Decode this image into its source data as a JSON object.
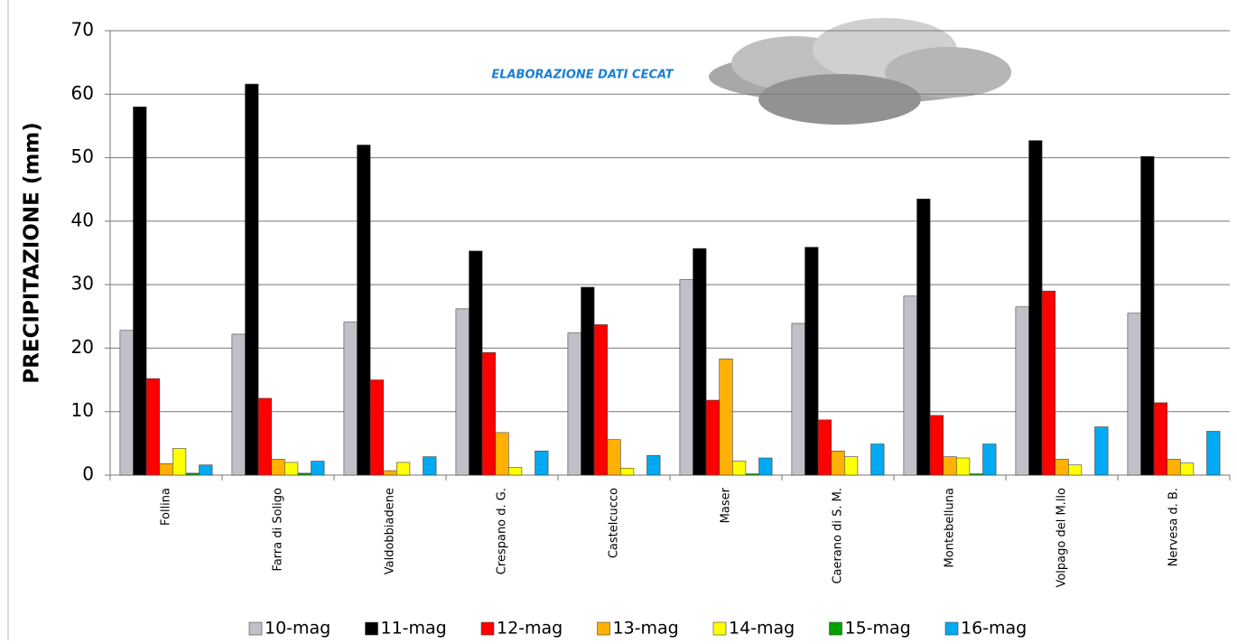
{
  "chart_data": {
    "type": "bar",
    "annotation": "ELABORAZIONE DATI CECAT",
    "y_label": "PRECIPITAZIONE (mm)",
    "categories": [
      "Follina",
      "Farra di Soligo",
      "Valdobbiadene",
      "Crespano d. G.",
      "Castelcucco",
      "Maser",
      "Caerano di S. M.",
      "Montebelluna",
      "Volpago del M.llo",
      "Nervesa d. B."
    ],
    "series": [
      {
        "name": "10-mag",
        "color": "#c0c0c8",
        "values": [
          22.8,
          22.2,
          24.1,
          26.2,
          22.4,
          30.8,
          23.9,
          28.2,
          26.5,
          25.5
        ]
      },
      {
        "name": "11-mag",
        "color": "#000000",
        "values": [
          58,
          61.6,
          52,
          35.3,
          29.6,
          35.7,
          35.9,
          43.5,
          52.7,
          50.2
        ]
      },
      {
        "name": "12-mag",
        "color": "#ff0000",
        "values": [
          15.2,
          12.1,
          15,
          19.3,
          23.7,
          11.8,
          8.7,
          9.4,
          29,
          11.4
        ]
      },
      {
        "name": "13-mag",
        "color": "#ffb000",
        "values": [
          1.8,
          2.5,
          0.7,
          6.7,
          5.6,
          18.3,
          3.8,
          2.9,
          2.5,
          2.5
        ]
      },
      {
        "name": "14-mag",
        "color": "#ffff00",
        "values": [
          4.2,
          2,
          2,
          1.2,
          1.1,
          2.2,
          2.9,
          2.7,
          1.6,
          1.9
        ]
      },
      {
        "name": "15-mag",
        "color": "#00a000",
        "values": [
          0.3,
          0.3,
          0,
          0,
          0,
          0.2,
          0,
          0.2,
          0,
          0
        ]
      },
      {
        "name": "16-mag",
        "color": "#00aaf0",
        "values": [
          1.6,
          2.2,
          2.9,
          3.8,
          3.1,
          2.7,
          4.9,
          4.9,
          7.6,
          6.9
        ]
      }
    ],
    "ylim": [
      0,
      70
    ],
    "yticks": [
      0,
      10,
      20,
      30,
      40,
      50,
      60,
      70
    ],
    "grid": true,
    "legend": "bottom"
  }
}
